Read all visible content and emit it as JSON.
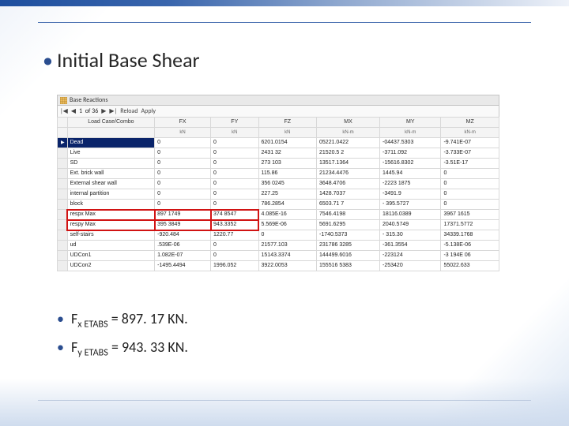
{
  "slide": {
    "title": "Initial Base Shear"
  },
  "table": {
    "panel_title": "Base Reactions",
    "nav": {
      "current": "1",
      "of_label": "of 36",
      "reload": "Reload",
      "apply": "Apply"
    },
    "columns": [
      {
        "name": "Load Case/Combo",
        "unit": ""
      },
      {
        "name": "FX",
        "unit": "kN"
      },
      {
        "name": "FY",
        "unit": "kN"
      },
      {
        "name": "FZ",
        "unit": "kN"
      },
      {
        "name": "MX",
        "unit": "kN-m"
      },
      {
        "name": "MY",
        "unit": "kN-m"
      },
      {
        "name": "MZ",
        "unit": "kN-m"
      }
    ],
    "row_style": {
      "selected_bg": "#0a246a",
      "selected_fg": "#ffffff",
      "highlight_outline": "#d11313"
    },
    "rows": [
      {
        "label": "Dead",
        "FX": "0",
        "FY": "0",
        "FZ": "6201.0154",
        "MX": "05221.0422",
        "MY": "-04437.5303",
        "MZ": "-9.741E-07",
        "selected": true
      },
      {
        "label": "Live",
        "FX": "0",
        "FY": "0",
        "FZ": "2431 32",
        "MX": "21520.5 2",
        "MY": "-3711.092",
        "MZ": "-3.733E-07"
      },
      {
        "label": "SD",
        "FX": "0",
        "FY": "0",
        "FZ": "273 103",
        "MX": "13517.1364",
        "MY": "-15616.8302",
        "MZ": "-3.51E-17"
      },
      {
        "label": "Ext. brick wall",
        "FX": "0",
        "FY": "0",
        "FZ": "115.86",
        "MX": "21234.4476",
        "MY": "1445.94",
        "MZ": "0"
      },
      {
        "label": "External shear wall",
        "FX": "0",
        "FY": "0",
        "FZ": "356 0245",
        "MX": "3648.4706",
        "MY": "-2223 1875",
        "MZ": "0"
      },
      {
        "label": "internal partition",
        "FX": "0",
        "FY": "0",
        "FZ": "227.25",
        "MX": "1428.7037",
        "MY": "-3491.9",
        "MZ": "0"
      },
      {
        "label": "block",
        "FX": "0",
        "FY": "0",
        "FZ": "786.2854",
        "MX": "6503.71 7",
        "MY": "- 395.5727",
        "MZ": "0"
      },
      {
        "label": "respx Max",
        "FX": "897 1749",
        "FY": "374 8547",
        "FZ": "4.085E-16",
        "MX": "7546.4198",
        "MY": "18116.0389",
        "MZ": "3967 1615",
        "highlight": true
      },
      {
        "label": "respy Max",
        "FX": "395 3849",
        "FY": "943.3352",
        "FZ": "5.569E-06",
        "MX": "5691.6295",
        "MY": "2040.5749",
        "MZ": "17371.5772",
        "highlight": true
      },
      {
        "label": "self-stairs",
        "FX": "-920.484",
        "FY": "1220.77",
        "FZ": "0",
        "MX": "-1740.5373",
        "MY": "- 315.30",
        "MZ": "34339.1768"
      },
      {
        "label": "ud",
        "FX": ".539E-06",
        "FY": "0",
        "FZ": "21577.103",
        "MX": "231786 3285",
        "MY": "-361.3554",
        "MZ": "-5.138E-06"
      },
      {
        "label": "UDCon1",
        "FX": "1.082E-07",
        "FY": "0",
        "FZ": "15143.3374",
        "MX": "144499.6016",
        "MY": "-223124",
        "MZ": "-3 194E 06"
      },
      {
        "label": "UDCon2",
        "FX": "-1495.4494",
        "FY": "1996.052",
        "FZ": "3922.0053",
        "MX": "155516 5383",
        "MY": "-253420",
        "MZ": "55022.633"
      }
    ]
  },
  "results": {
    "fx": {
      "sub": "x ETABS",
      "value": "897. 17",
      "unit": "KN."
    },
    "fy": {
      "sub": "y ETABS",
      "value": "943. 33",
      "unit": "KN."
    }
  },
  "palette": {
    "brand_blue": "#2a4d8f",
    "stripe_from": "#1d4e9e",
    "stripe_to": "#eef2f9",
    "grid_border": "#d8d8d8",
    "panel_border": "#c4c4c4"
  }
}
